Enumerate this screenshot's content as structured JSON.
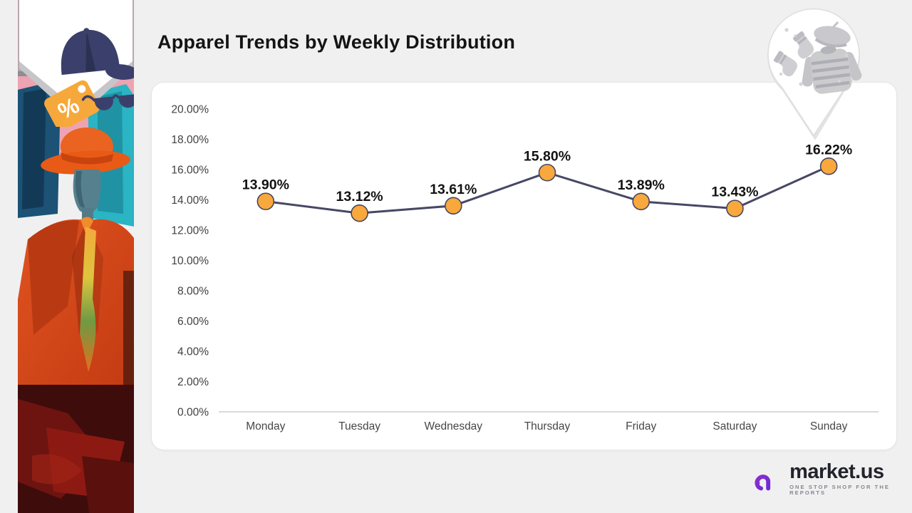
{
  "header": {
    "title": "Apparel Trends by Weekly Distribution"
  },
  "chart_data": {
    "type": "line",
    "title": "Apparel Trends by Weekly Distribution",
    "categories": [
      "Monday",
      "Tuesday",
      "Wednesday",
      "Thursday",
      "Friday",
      "Saturday",
      "Sunday"
    ],
    "values": [
      13.9,
      13.12,
      13.61,
      15.8,
      13.89,
      13.43,
      16.22
    ],
    "point_labels": [
      "13.90%",
      "13.12%",
      "13.61%",
      "15.80%",
      "13.89%",
      "13.43%",
      "16.22%"
    ],
    "xlabel": "",
    "ylabel": "",
    "ylim": [
      0,
      20
    ],
    "ytick_step": 2,
    "ytick_labels": [
      "0.00%",
      "2.00%",
      "4.00%",
      "6.00%",
      "8.00%",
      "10.00%",
      "12.00%",
      "14.00%",
      "16.00%",
      "18.00%",
      "20.00%"
    ],
    "grid": false,
    "legend": "none",
    "colors": {
      "line": "#474766",
      "marker_fill": "#F8A83D",
      "marker_stroke": "#47475F",
      "axis_text": "#404040",
      "point_label_text": "#121212",
      "baseline": "#D9D9D9"
    }
  },
  "branding": {
    "logo_text": "market.us",
    "tagline": "ONE STOP SHOP FOR THE REPORTS",
    "purple_1": "#8B2FC9",
    "purple_2": "#6C2BD9"
  },
  "decor": {
    "badge_icons": [
      "cap-icon",
      "discount-tag-icon",
      "sunglasses-icon"
    ],
    "pin_icons": [
      "socks-icon",
      "beret-icon",
      "sweater-icon"
    ],
    "tag_percent": "%"
  }
}
